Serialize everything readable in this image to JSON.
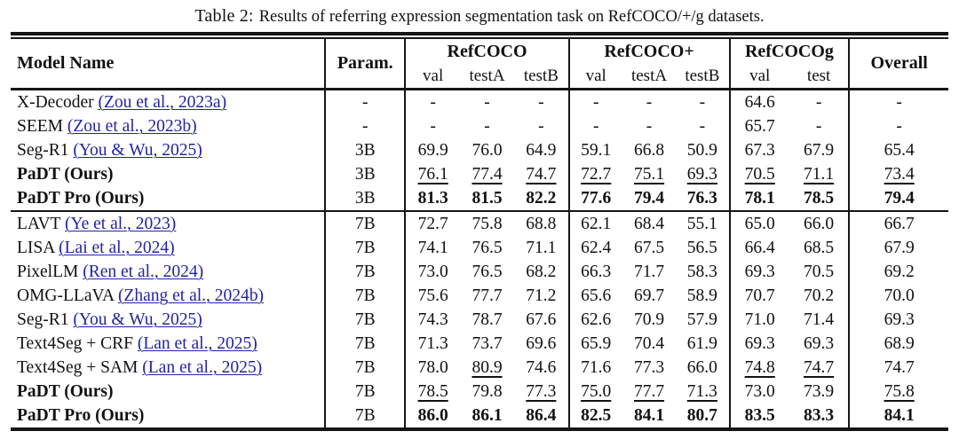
{
  "caption": {
    "label": "Table 2:",
    "text": "Results of referring expression segmentation task on RefCOCO/+/g datasets."
  },
  "colors": {
    "citation_blue": "#2323a8",
    "rule_black": "#161616",
    "text": "#111111"
  },
  "table": {
    "header": {
      "model_name": "Model Name",
      "param": "Param.",
      "overall": "Overall",
      "groups": [
        {
          "label": "RefCOCO"
        },
        {
          "label": "RefCOCO+"
        },
        {
          "label": "RefCOCOg"
        }
      ],
      "subs": [
        "val",
        "testA",
        "testB",
        "val",
        "testA",
        "testB",
        "val",
        "test"
      ]
    },
    "blocks": [
      {
        "rows": [
          {
            "model": "X-Decoder",
            "citation": "(Zou et al., 2023a)",
            "bold": false,
            "param": "-",
            "values": [
              "-",
              "-",
              "-",
              "-",
              "-",
              "-",
              "64.6",
              "-",
              "-"
            ],
            "styles": [
              "p",
              "p",
              "p",
              "p",
              "p",
              "p",
              "p",
              "p",
              "p"
            ]
          },
          {
            "model": "SEEM",
            "citation": "(Zou et al., 2023b)",
            "bold": false,
            "param": "-",
            "values": [
              "-",
              "-",
              "-",
              "-",
              "-",
              "-",
              "65.7",
              "-",
              "-"
            ],
            "styles": [
              "p",
              "p",
              "p",
              "p",
              "p",
              "p",
              "p",
              "p",
              "p"
            ]
          },
          {
            "model": "Seg-R1",
            "citation": "(You & Wu, 2025)",
            "bold": false,
            "param": "3B",
            "values": [
              "69.9",
              "76.0",
              "64.9",
              "59.1",
              "66.8",
              "50.9",
              "67.3",
              "67.9",
              "65.4"
            ],
            "styles": [
              "p",
              "p",
              "p",
              "p",
              "p",
              "p",
              "p",
              "p",
              "p"
            ]
          },
          {
            "model": "PaDT (Ours)",
            "citation": "",
            "bold": true,
            "param": "3B",
            "values": [
              "76.1",
              "77.4",
              "74.7",
              "72.7",
              "75.1",
              "69.3",
              "70.5",
              "71.1",
              "73.4"
            ],
            "styles": [
              "u",
              "u",
              "u",
              "u",
              "u",
              "u",
              "u",
              "u",
              "u"
            ]
          },
          {
            "model": "PaDT Pro (Ours)",
            "citation": "",
            "bold": true,
            "param": "3B",
            "values": [
              "81.3",
              "81.5",
              "82.2",
              "77.6",
              "79.4",
              "76.3",
              "78.1",
              "78.5",
              "79.4"
            ],
            "styles": [
              "b",
              "b",
              "b",
              "b",
              "b",
              "b",
              "b",
              "b",
              "b"
            ]
          }
        ]
      },
      {
        "rows": [
          {
            "model": "LAVT",
            "citation": "(Ye et al., 2023)",
            "bold": false,
            "param": "7B",
            "values": [
              "72.7",
              "75.8",
              "68.8",
              "62.1",
              "68.4",
              "55.1",
              "65.0",
              "66.0",
              "66.7"
            ],
            "styles": [
              "p",
              "p",
              "p",
              "p",
              "p",
              "p",
              "p",
              "p",
              "p"
            ]
          },
          {
            "model": "LISA",
            "citation": "(Lai et al., 2024)",
            "bold": false,
            "param": "7B",
            "values": [
              "74.1",
              "76.5",
              "71.1",
              "62.4",
              "67.5",
              "56.5",
              "66.4",
              "68.5",
              "67.9"
            ],
            "styles": [
              "p",
              "p",
              "p",
              "p",
              "p",
              "p",
              "p",
              "p",
              "p"
            ]
          },
          {
            "model": "PixelLM",
            "citation": "(Ren et al., 2024)",
            "bold": false,
            "param": "7B",
            "values": [
              "73.0",
              "76.5",
              "68.2",
              "66.3",
              "71.7",
              "58.3",
              "69.3",
              "70.5",
              "69.2"
            ],
            "styles": [
              "p",
              "p",
              "p",
              "p",
              "p",
              "p",
              "p",
              "p",
              "p"
            ]
          },
          {
            "model": "OMG-LLaVA",
            "citation": "(Zhang et al., 2024b)",
            "bold": false,
            "param": "7B",
            "values": [
              "75.6",
              "77.7",
              "71.2",
              "65.6",
              "69.7",
              "58.9",
              "70.7",
              "70.2",
              "70.0"
            ],
            "styles": [
              "p",
              "p",
              "p",
              "p",
              "p",
              "p",
              "p",
              "p",
              "p"
            ]
          },
          {
            "model": "Seg-R1",
            "citation": "(You & Wu, 2025)",
            "bold": false,
            "param": "7B",
            "values": [
              "74.3",
              "78.7",
              "67.6",
              "62.6",
              "70.9",
              "57.9",
              "71.0",
              "71.4",
              "69.3"
            ],
            "styles": [
              "p",
              "p",
              "p",
              "p",
              "p",
              "p",
              "p",
              "p",
              "p"
            ]
          },
          {
            "model": "Text4Seg + CRF",
            "citation": "(Lan et al., 2025)",
            "bold": false,
            "param": "7B",
            "values": [
              "71.3",
              "73.7",
              "69.6",
              "65.9",
              "70.4",
              "61.9",
              "69.3",
              "69.3",
              "68.9"
            ],
            "styles": [
              "p",
              "p",
              "p",
              "p",
              "p",
              "p",
              "p",
              "p",
              "p"
            ]
          },
          {
            "model": "Text4Seg + SAM",
            "citation": "(Lan et al., 2025)",
            "bold": false,
            "param": "7B",
            "values": [
              "78.0",
              "80.9",
              "74.6",
              "71.6",
              "77.3",
              "66.0",
              "74.8",
              "74.7",
              "74.7"
            ],
            "styles": [
              "p",
              "u",
              "p",
              "p",
              "p",
              "p",
              "u",
              "u",
              "p"
            ]
          },
          {
            "model": "PaDT (Ours)",
            "citation": "",
            "bold": true,
            "param": "7B",
            "values": [
              "78.5",
              "79.8",
              "77.3",
              "75.0",
              "77.7",
              "71.3",
              "73.0",
              "73.9",
              "75.8"
            ],
            "styles": [
              "u",
              "p",
              "u",
              "u",
              "u",
              "u",
              "p",
              "p",
              "u"
            ]
          },
          {
            "model": "PaDT Pro (Ours)",
            "citation": "",
            "bold": true,
            "param": "7B",
            "values": [
              "86.0",
              "86.1",
              "86.4",
              "82.5",
              "84.1",
              "80.7",
              "83.5",
              "83.3",
              "84.1"
            ],
            "styles": [
              "b",
              "b",
              "b",
              "b",
              "b",
              "b",
              "b",
              "b",
              "b"
            ]
          }
        ]
      }
    ]
  }
}
